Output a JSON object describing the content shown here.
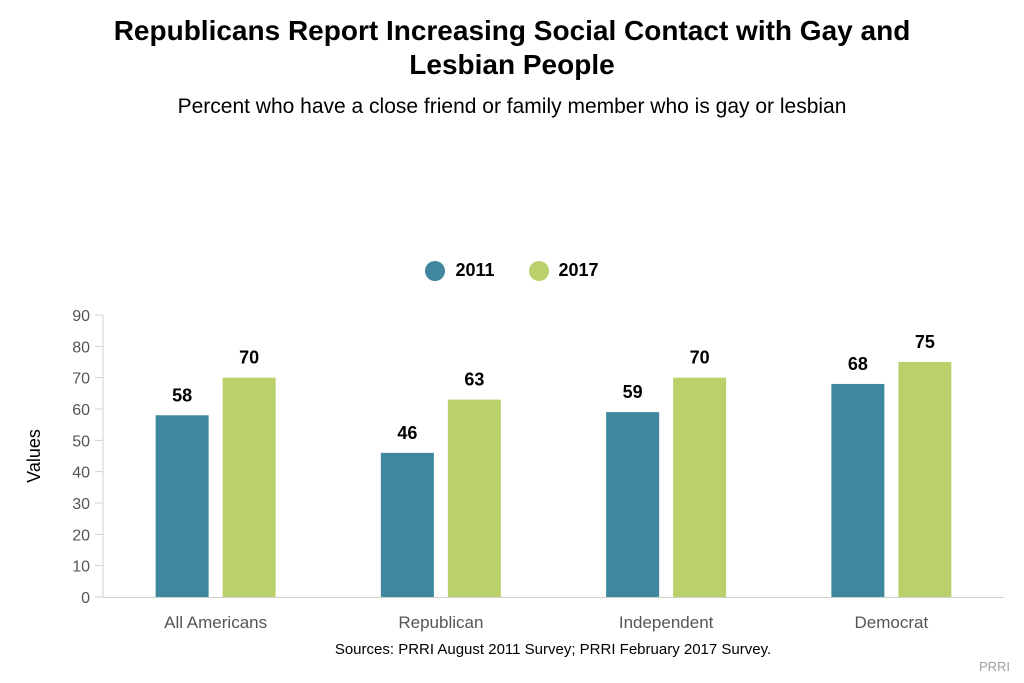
{
  "colors": {
    "series_2011": "#3e879e",
    "series_2017": "#bad16b",
    "axis": "#d0d0d0",
    "tick_text": "#555555"
  },
  "chart_data": {
    "type": "bar",
    "title": "Republicans Report Increasing Social Contact with Gay and Lesbian People",
    "title_lines": [
      "Republicans Report Increasing Social Contact with Gay and",
      "Lesbian People"
    ],
    "subtitle": "Percent who have a close friend or family member who is gay or lesbian",
    "categories": [
      "All Americans",
      "Republican",
      "Independent",
      "Democrat"
    ],
    "series": [
      {
        "name": "2011",
        "values": [
          58,
          46,
          59,
          68
        ]
      },
      {
        "name": "2017",
        "values": [
          70,
          63,
          70,
          75
        ]
      }
    ],
    "ylabel": "Values",
    "xlabel": "",
    "ylim": [
      0,
      90
    ],
    "yticks": [
      0,
      10,
      20,
      30,
      40,
      50,
      60,
      70,
      80,
      90
    ],
    "grid": false,
    "legend_position": "top-center",
    "source": "Sources: PRRI August 2011 Survey; PRRI February 2017 Survey.",
    "credit": "PRRI"
  }
}
